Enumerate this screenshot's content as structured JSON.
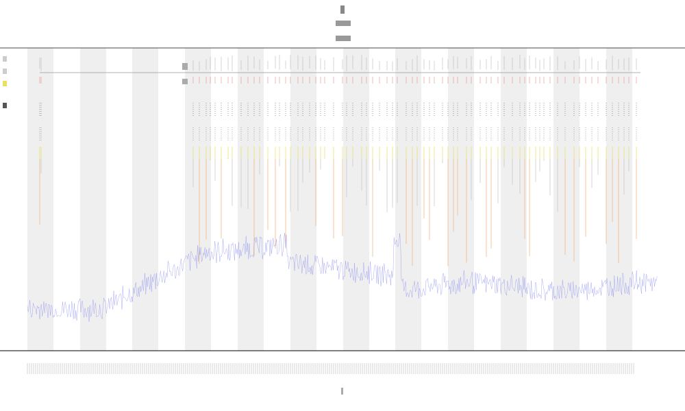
{
  "chart_data": {
    "type": "line",
    "title": "",
    "subtitle_lines": [],
    "xlabel": "",
    "ylabel": "",
    "grid": false,
    "shaded_bands": true,
    "legend_position": "top-left",
    "x": [],
    "series": [],
    "annotations": []
  }
}
